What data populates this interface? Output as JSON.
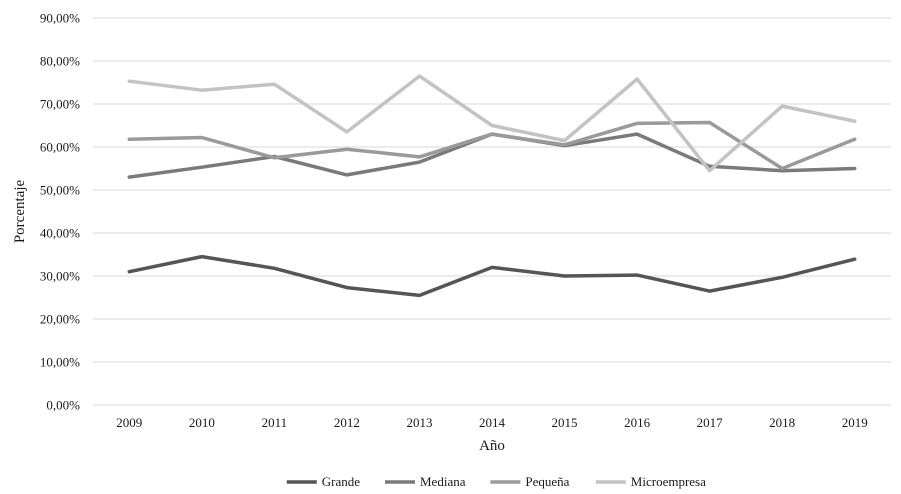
{
  "chart_data": {
    "type": "line",
    "title": "",
    "xlabel": "Año",
    "ylabel": "Porcentaje",
    "x": [
      "2009",
      "2010",
      "2011",
      "2012",
      "2013",
      "2014",
      "2015",
      "2016",
      "2017",
      "2018",
      "2019"
    ],
    "ylim": [
      0,
      90
    ],
    "yticks": [
      0,
      10,
      20,
      30,
      40,
      50,
      60,
      70,
      80,
      90
    ],
    "ytick_labels": [
      "0,00%",
      "10,00%",
      "20,00%",
      "30,00%",
      "40,00%",
      "50,00%",
      "60,00%",
      "70,00%",
      "80,00%",
      "90,00%"
    ],
    "grid": "horizontal",
    "legend_position": "bottom",
    "series": [
      {
        "name": "Grande",
        "color": "#555555",
        "values": [
          31.0,
          34.5,
          31.8,
          27.3,
          25.5,
          32.0,
          30.0,
          30.2,
          26.5,
          29.7,
          33.9
        ]
      },
      {
        "name": "Mediana",
        "color": "#7a7a7a",
        "values": [
          53.0,
          55.3,
          57.8,
          53.5,
          56.5,
          63.0,
          60.3,
          63.0,
          55.5,
          54.5,
          55.0
        ]
      },
      {
        "name": "Pequeña",
        "color": "#9a9a9a",
        "values": [
          61.8,
          62.2,
          57.5,
          59.5,
          57.7,
          63.0,
          60.5,
          65.5,
          65.7,
          55.0,
          61.8
        ]
      },
      {
        "name": "Microempresa",
        "color": "#c3c3c3",
        "values": [
          75.3,
          73.2,
          74.6,
          63.5,
          76.5,
          65.0,
          61.5,
          75.8,
          54.5,
          69.5,
          66.0
        ]
      }
    ]
  }
}
